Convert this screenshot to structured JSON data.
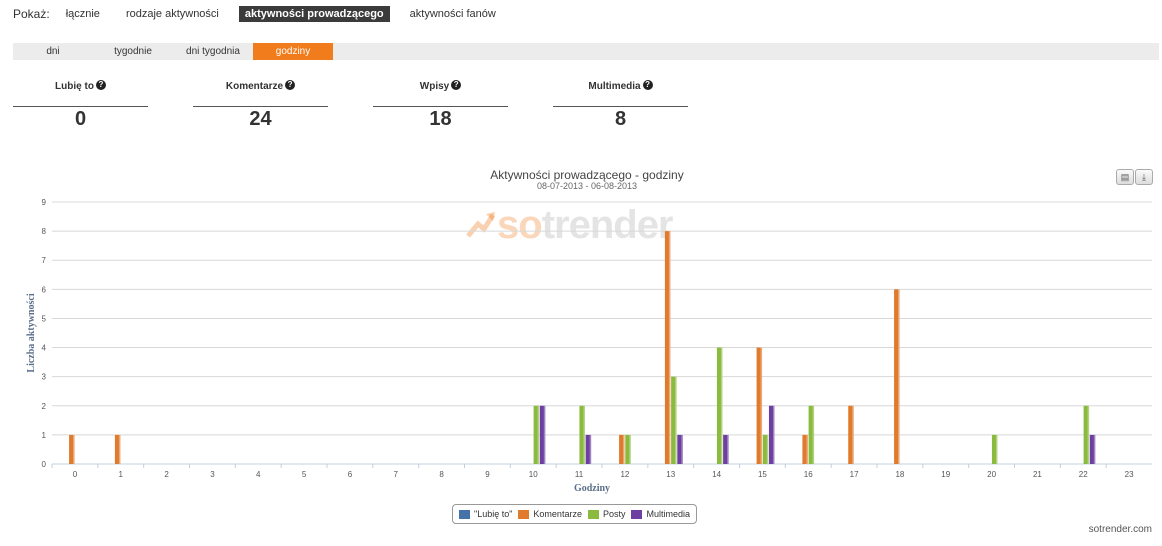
{
  "nav": {
    "label": "Pokaż:",
    "items": [
      "łącznie",
      "rodzaje aktywności",
      "aktywności prowadzącego",
      "aktywności fanów"
    ],
    "active": 2
  },
  "subtabs": {
    "items": [
      "dni",
      "tygodnie",
      "dni tygodnia",
      "godziny"
    ],
    "active": 3
  },
  "stats": [
    {
      "label": "Lubię to",
      "value": "0"
    },
    {
      "label": "Komentarze",
      "value": "24"
    },
    {
      "label": "Wpisy",
      "value": "18"
    },
    {
      "label": "Multimedia",
      "value": "8"
    }
  ],
  "watermark": {
    "so": "so",
    "rest": "trender"
  },
  "credit": "sotrender.com",
  "chart_data": {
    "type": "bar",
    "title": "Aktywności prowadzącego - godziny",
    "subtitle": "08-07-2013 - 06-08-2013",
    "xlabel": "Godziny",
    "ylabel": "Liczba aktywności",
    "categories": [
      "0",
      "1",
      "2",
      "3",
      "4",
      "5",
      "6",
      "7",
      "8",
      "9",
      "10",
      "11",
      "12",
      "13",
      "14",
      "15",
      "16",
      "17",
      "18",
      "19",
      "20",
      "21",
      "22",
      "23"
    ],
    "ylim": [
      0,
      9
    ],
    "yticks": [
      0,
      1,
      2,
      3,
      4,
      5,
      6,
      7,
      8,
      9
    ],
    "grid": true,
    "legend": "bottom",
    "series": [
      {
        "name": "\"Lubię to\"",
        "color": "#4572a7",
        "values": [
          0,
          0,
          0,
          0,
          0,
          0,
          0,
          0,
          0,
          0,
          0,
          0,
          0,
          0,
          0,
          0,
          0,
          0,
          0,
          0,
          0,
          0,
          0,
          0
        ]
      },
      {
        "name": "Komentarze",
        "color": "#e07b2e",
        "values": [
          1,
          1,
          0,
          0,
          0,
          0,
          0,
          0,
          0,
          0,
          0,
          0,
          1,
          8,
          0,
          4,
          1,
          2,
          6,
          0,
          0,
          0,
          0,
          0
        ]
      },
      {
        "name": "Posty",
        "color": "#8bbb3e",
        "values": [
          0,
          0,
          0,
          0,
          0,
          0,
          0,
          0,
          0,
          0,
          2,
          2,
          1,
          3,
          4,
          1,
          2,
          0,
          0,
          0,
          1,
          0,
          2,
          0
        ]
      },
      {
        "name": "Multimedia",
        "color": "#6c3fa0",
        "values": [
          0,
          0,
          0,
          0,
          0,
          0,
          0,
          0,
          0,
          0,
          2,
          1,
          0,
          1,
          1,
          2,
          0,
          0,
          0,
          0,
          0,
          0,
          1,
          0
        ]
      }
    ]
  }
}
